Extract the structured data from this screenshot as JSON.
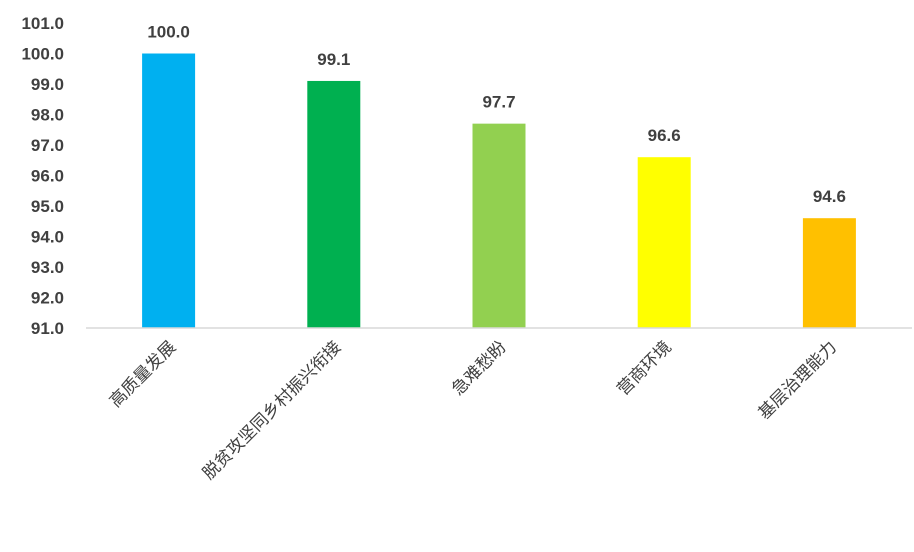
{
  "chart_data": {
    "type": "bar",
    "categories": [
      "高质量发展",
      "脱贫攻坚同乡村振兴衔接",
      "急难愁盼",
      "营商环境",
      "基层治理能力"
    ],
    "values": [
      100.0,
      99.1,
      97.7,
      96.6,
      94.6
    ],
    "data_labels": [
      "100.0",
      "99.1",
      "97.7",
      "96.6",
      "94.6"
    ],
    "bar_colors": [
      "#00B0F0",
      "#00B050",
      "#92D050",
      "#FFFF00",
      "#FFC000"
    ],
    "ylim": [
      91.0,
      101.0
    ],
    "yticks": [
      "91.0",
      "92.0",
      "93.0",
      "94.0",
      "95.0",
      "96.0",
      "97.0",
      "98.0",
      "99.0",
      "100.0",
      "101.0"
    ],
    "grid": false,
    "legend": "none"
  }
}
